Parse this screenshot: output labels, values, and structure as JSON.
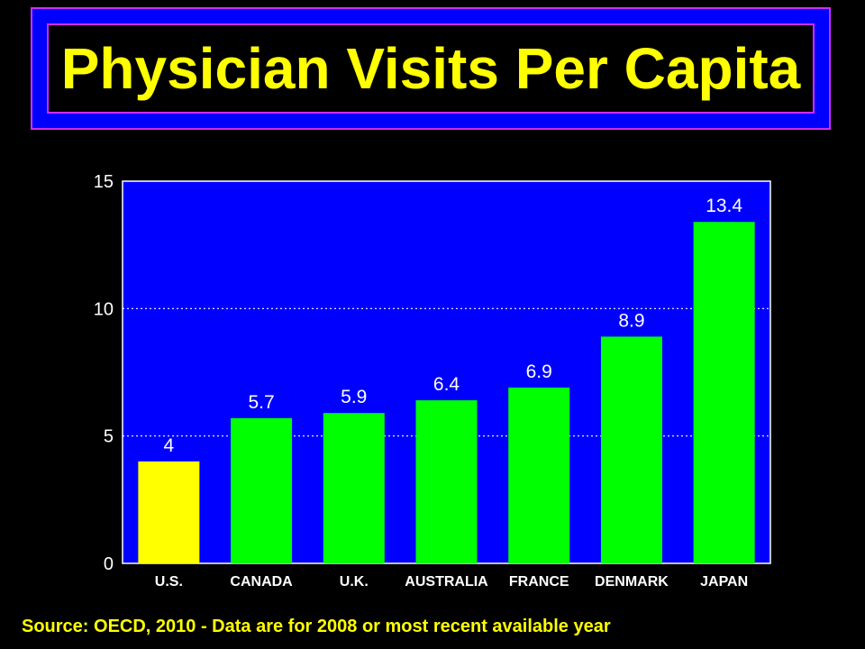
{
  "chart_data": {
    "type": "bar",
    "title": "Physician Visits Per Capita",
    "categories": [
      "U.S.",
      "CANADA",
      "U.K.",
      "AUSTRALIA",
      "FRANCE",
      "DENMARK",
      "JAPAN"
    ],
    "values": [
      4,
      5.7,
      5.9,
      6.4,
      6.9,
      8.9,
      13.4
    ],
    "value_labels": [
      "4",
      "5.7",
      "5.9",
      "6.4",
      "6.9",
      "8.9",
      "13.4"
    ],
    "xlabel": "",
    "ylabel": "",
    "ylim": [
      0,
      15
    ],
    "yticks": [
      0,
      5,
      10,
      15
    ],
    "ytick_labels": [
      "0",
      "5",
      "10",
      "15"
    ],
    "grid": "horizontal dotted",
    "legend": "none",
    "colors": {
      "plot_background": "#0000ff",
      "highlight_bar": "#ffff00",
      "bar": "#00ff00",
      "gridline": "#ffffff"
    },
    "highlight_index": 0
  },
  "source": "Source: OECD, 2010 - Data are for 2008 or most recent available year"
}
